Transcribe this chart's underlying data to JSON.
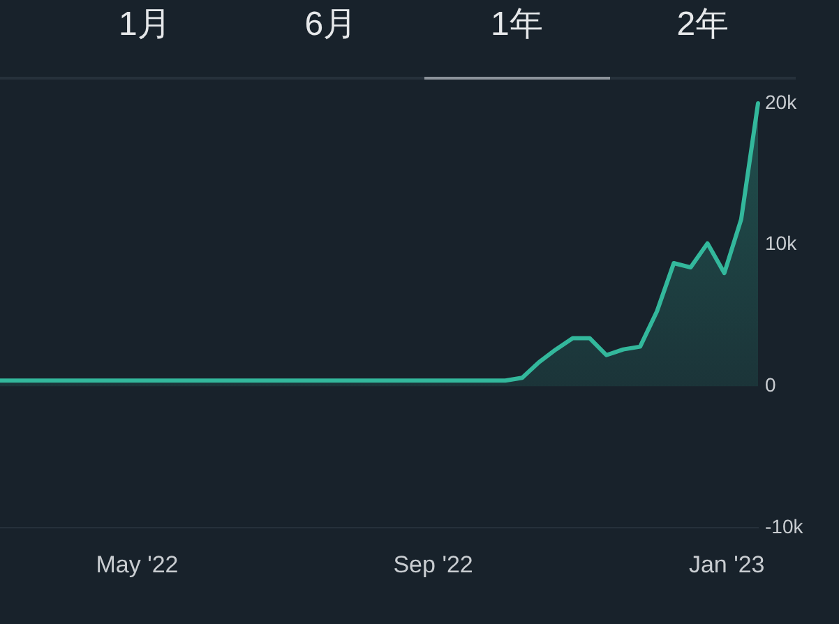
{
  "chart_data": {
    "type": "area",
    "annotations": [
      "1月",
      "6月",
      "1年",
      "2年"
    ],
    "x": [
      "2022-03-05",
      "2022-10-01",
      "2022-10-08",
      "2022-10-15",
      "2022-10-22",
      "2022-10-29",
      "2022-11-05",
      "2022-11-12",
      "2022-11-19",
      "2022-11-26",
      "2022-12-03",
      "2022-12-10",
      "2022-12-17",
      "2022-12-24",
      "2022-12-31",
      "2023-01-07",
      "2023-01-14"
    ],
    "values": [
      400,
      400,
      600,
      1700,
      2600,
      3400,
      3400,
      2200,
      2600,
      2800,
      5300,
      8700,
      8400,
      10100,
      8000,
      11800,
      20000
    ],
    "color": "#33b89c",
    "xlim": [
      "2022-03-05",
      "2023-01-14"
    ],
    "xticks": [
      {
        "value": "2022-05-01",
        "label": "May '22"
      },
      {
        "value": "2022-09-01",
        "label": "Sep '22"
      },
      {
        "value": "2023-01-01",
        "label": "Jan '23"
      }
    ],
    "ylim": [
      -10000,
      20000
    ],
    "yticks": [
      {
        "value": -10000,
        "label": "-10k"
      },
      0,
      {
        "value": 10000,
        "label": "10k"
      },
      {
        "value": 20000,
        "label": "20k"
      }
    ]
  }
}
